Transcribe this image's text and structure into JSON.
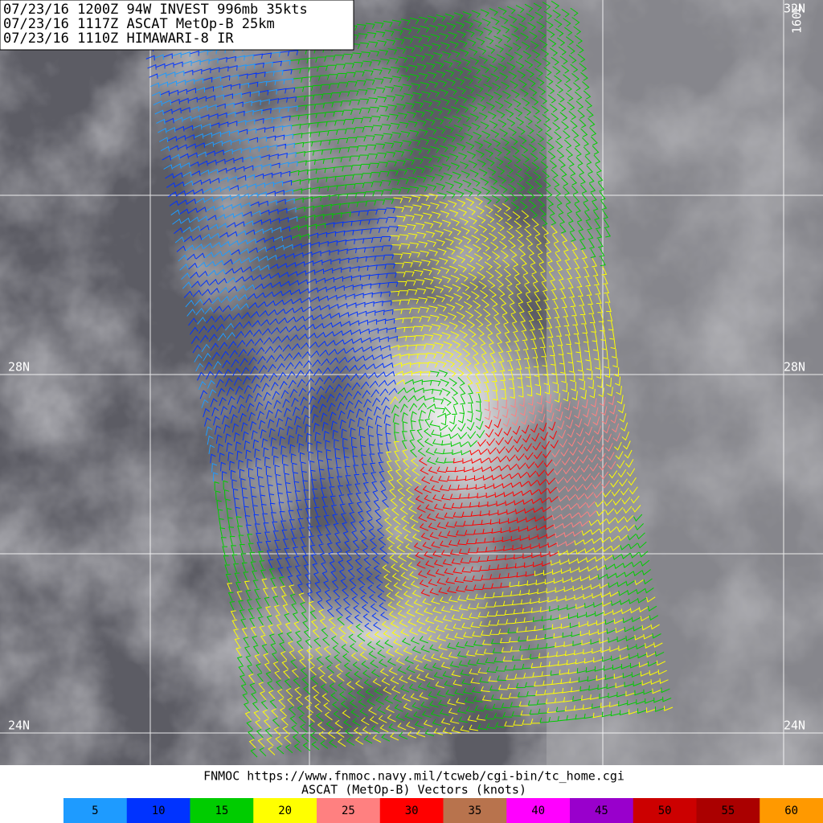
{
  "header": {
    "lines": [
      "07/23/16 1200Z  94W INVEST 996mb 35kts",
      "07/23/16 1117Z  ASCAT MetOp-B 25km",
      "07/23/16 1110Z  HIMAWARI-8 IR"
    ]
  },
  "map": {
    "labels": {
      "lat_top": "32N",
      "lon_top": "160E",
      "lat_28_left": "28N",
      "lat_28_right": "28N",
      "lat_24_left": "24N",
      "lat_24_right": "24N"
    }
  },
  "footer": {
    "source": "FNMOC https://www.fnmoc.navy.mil/tcweb/cgi-bin/tc_home.cgi",
    "legend_title": "ASCAT (MetOp-B) Vectors (knots)"
  },
  "legend": [
    {
      "value": 5,
      "color": "#1e9bff"
    },
    {
      "value": 10,
      "color": "#0033ff"
    },
    {
      "value": 15,
      "color": "#00cc00"
    },
    {
      "value": 20,
      "color": "#ffff00"
    },
    {
      "value": 25,
      "color": "#ff8080"
    },
    {
      "value": 30,
      "color": "#ff0000"
    },
    {
      "value": 35,
      "color": "#b8734d"
    },
    {
      "value": 40,
      "color": "#ff00ff"
    },
    {
      "value": 45,
      "color": "#9900cc"
    },
    {
      "value": 50,
      "color": "#cc0000"
    },
    {
      "value": 55,
      "color": "#aa0000"
    },
    {
      "value": 60,
      "color": "#ff9900"
    }
  ]
}
